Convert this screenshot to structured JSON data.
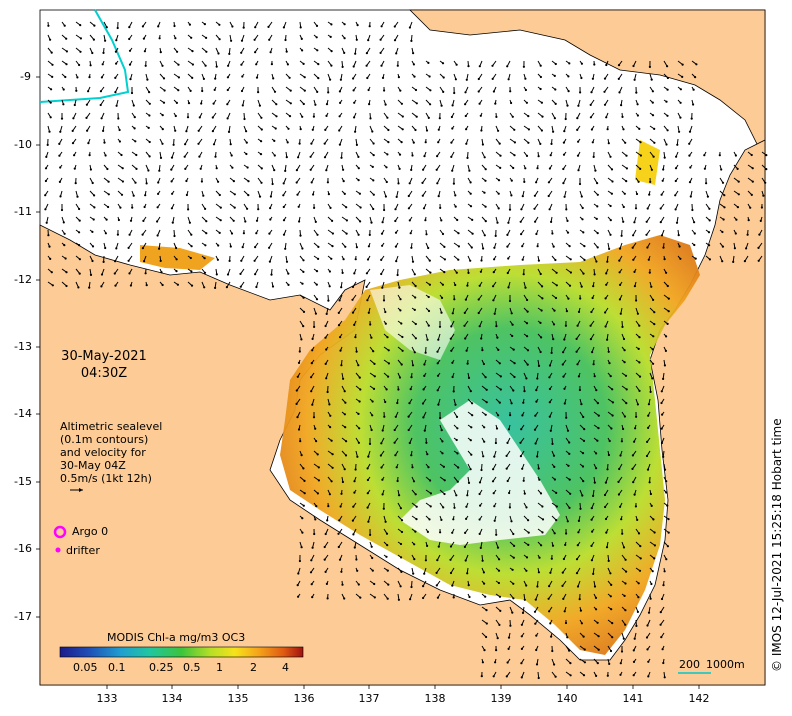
{
  "map": {
    "date_line1": "30-May-2021",
    "date_line2": "04:30Z",
    "description": [
      "Altimetric sealevel",
      "(0.1m contours)",
      "and velocity for",
      "30-May 04Z",
      "0.5m/s (1kt 12h)"
    ],
    "legend": {
      "argo_label": "Argo 0",
      "drifter_label": "drifter",
      "argo_color": "#ff00ff",
      "drifter_color": "#ff00ff"
    },
    "colorbar": {
      "title": "MODIS Chl-a mg/m3 OC3",
      "ticks": [
        "0.05",
        "0.1",
        "0.25",
        "0.5",
        "1",
        "2",
        "4"
      ]
    },
    "scale": {
      "label1": "200",
      "label2": "1000m"
    },
    "credit": "© IMOS 12-Jul-2021 15:25:18 Hobart time",
    "y_ticks": [
      "-9",
      "-10",
      "-11",
      "-12",
      "-13",
      "-14",
      "-15",
      "-16",
      "-17"
    ],
    "x_ticks": [
      "133",
      "134",
      "135",
      "136",
      "137",
      "138",
      "139",
      "140",
      "141",
      "142"
    ],
    "colors": {
      "land": "#fdcb95",
      "ocean": "#ffffff",
      "coastline": "#000000"
    }
  }
}
